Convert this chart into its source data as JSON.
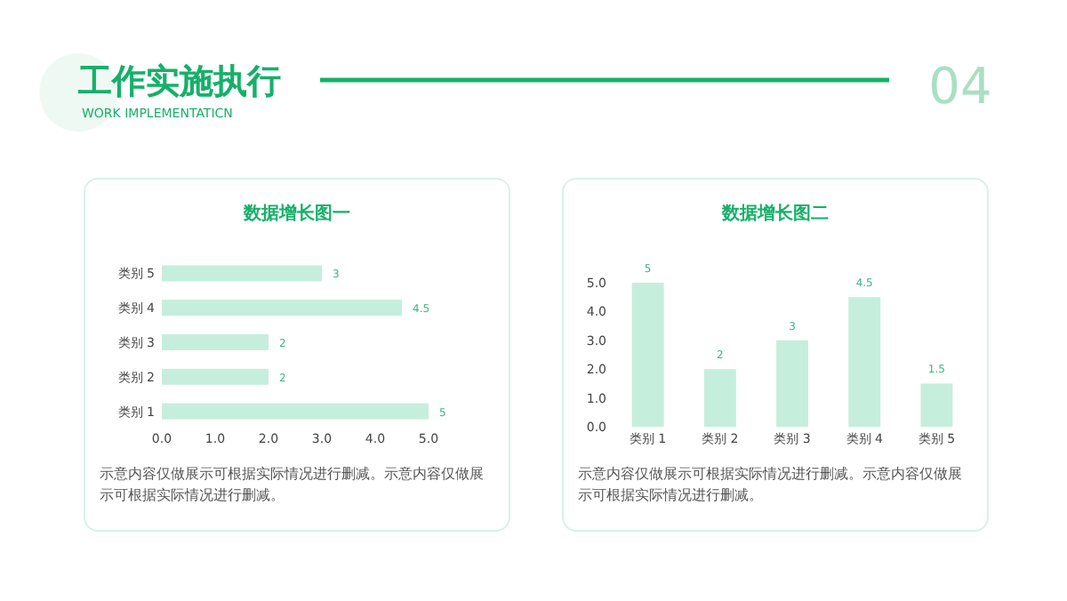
{
  "chart_data": [
    {
      "type": "other",
      "title": "工作实施执行",
      "subtitle": "WORK IMPLEMENTATICN",
      "annotations": [
        "04"
      ]
    },
    {
      "type": "bar",
      "orientation": "horizontal",
      "title": "数据增长图一",
      "categories": [
        "类别 5",
        "类别 4",
        "类别 3",
        "类别 2",
        "类别 1"
      ],
      "values": [
        3,
        4.5,
        2,
        2,
        5
      ],
      "color": "#c6eedd",
      "xlim": [
        0,
        5
      ],
      "xticks": [
        {
          "value": 0,
          "label": "0.0"
        },
        {
          "value": 1,
          "label": "1.0"
        },
        {
          "value": 2,
          "label": "2.0"
        },
        {
          "value": 3,
          "label": "3.0"
        },
        {
          "value": 4,
          "label": "4.0"
        },
        {
          "value": 5,
          "label": "5.0"
        }
      ],
      "data_labels": true,
      "grid": false,
      "annotations": [
        "示意内容仅做展示可根据实际情况进行删减。示意内容仅做展示可根据实际情况进行删减。"
      ]
    },
    {
      "type": "bar",
      "title": "数据增长图二",
      "categories": [
        "类别 1",
        "类别 2",
        "类别 3",
        "类别 4",
        "类别 5"
      ],
      "values": [
        5,
        2,
        3,
        4.5,
        1.5
      ],
      "color": "#c6eedd",
      "ylim": [
        0,
        5
      ],
      "yticks": [
        {
          "value": 0,
          "label": "0.0"
        },
        {
          "value": 1,
          "label": "1.0"
        },
        {
          "value": 2,
          "label": "2.0"
        },
        {
          "value": 3,
          "label": "3.0"
        },
        {
          "value": 4,
          "label": "4.0"
        },
        {
          "value": 5,
          "label": "5.0"
        }
      ],
      "data_labels": true,
      "grid": false,
      "annotations": [
        "示意内容仅做展示可根据实际情况进行删减。示意内容仅做展示可根据实际情况进行删减。"
      ]
    }
  ]
}
